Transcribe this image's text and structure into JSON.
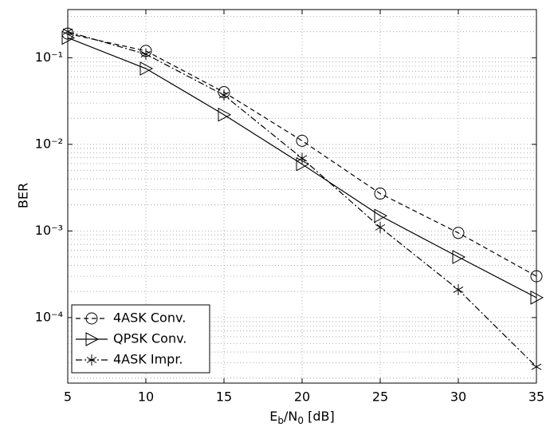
{
  "chart_data": {
    "type": "line",
    "x_label": [
      {
        "text": "E"
      },
      {
        "text": "b",
        "sub": true
      },
      {
        "text": "/N"
      },
      {
        "text": "0",
        "sub": true
      },
      {
        "text": " [dB]"
      }
    ],
    "y_label": "BER",
    "x": [
      5,
      10,
      15,
      20,
      25,
      30,
      35
    ],
    "series": [
      {
        "name": "4ASK Conv.",
        "color": "#000000",
        "style": "dashed",
        "marker": "circle",
        "values": [
          0.19,
          0.12,
          0.04,
          0.011,
          0.0027,
          0.00095,
          0.0003
        ]
      },
      {
        "name": "QPSK Conv.",
        "color": "#000000",
        "style": "solid",
        "marker": "triangle-right",
        "values": [
          0.17,
          0.075,
          0.022,
          0.0059,
          0.0015,
          0.0005,
          0.00017
        ]
      },
      {
        "name": "4ASK Impr.",
        "color": "#000000",
        "style": "dashdot",
        "marker": "asterisk",
        "values": [
          0.2,
          0.11,
          0.037,
          0.0069,
          0.0011,
          0.00021,
          2.7e-05
        ]
      }
    ],
    "xlim": [
      5,
      35
    ],
    "xticks": [
      5,
      10,
      15,
      20,
      25,
      30,
      35
    ],
    "ylim": [
      1.75e-05,
      0.36
    ],
    "yticks": [
      {
        "value": 0.0001,
        "label": "10⁻⁴"
      },
      {
        "value": 0.001,
        "label": "10⁻³"
      },
      {
        "value": 0.01,
        "label": "10⁻²"
      },
      {
        "value": 0.1,
        "label": "10⁻¹"
      }
    ],
    "y_scale": "log",
    "grid": true,
    "minor_grid": true,
    "legend": "lower left"
  }
}
